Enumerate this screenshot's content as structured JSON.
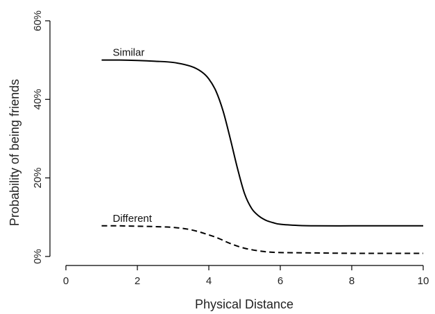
{
  "chart_data": {
    "type": "line",
    "title": "",
    "xlabel": "Physical Distance",
    "ylabel": "Probability of being friends",
    "xlim": [
      0,
      10
    ],
    "ylim": [
      0,
      0.6
    ],
    "xticks": [
      0,
      2,
      4,
      6,
      8,
      10
    ],
    "xtick_labels": [
      "0",
      "2",
      "4",
      "6",
      "8",
      "10"
    ],
    "yticks": [
      0,
      0.2,
      0.4,
      0.6
    ],
    "ytick_labels": [
      "0%",
      "20%",
      "40%",
      "60%"
    ],
    "grid": false,
    "legend": "none",
    "series": [
      {
        "name": "Similar",
        "style": "solid",
        "color": "#000000",
        "x": [
          1,
          1.5,
          2,
          2.5,
          3,
          3.5,
          3.8,
          4,
          4.2,
          4.4,
          4.6,
          4.8,
          5,
          5.2,
          5.4,
          5.6,
          5.8,
          6,
          6.5,
          7,
          8,
          9,
          10
        ],
        "y": [
          0.5,
          0.5,
          0.499,
          0.497,
          0.494,
          0.484,
          0.47,
          0.452,
          0.421,
          0.37,
          0.3,
          0.225,
          0.16,
          0.122,
          0.103,
          0.092,
          0.086,
          0.082,
          0.079,
          0.078,
          0.078,
          0.078,
          0.078
        ]
      },
      {
        "name": "Different",
        "style": "dashed",
        "color": "#000000",
        "x": [
          1,
          1.5,
          2,
          2.5,
          3,
          3.5,
          4,
          4.3,
          4.6,
          5,
          5.5,
          6,
          7,
          8,
          9,
          10
        ],
        "y": [
          0.078,
          0.078,
          0.077,
          0.076,
          0.074,
          0.068,
          0.055,
          0.045,
          0.033,
          0.021,
          0.013,
          0.01,
          0.009,
          0.008,
          0.008,
          0.008
        ]
      }
    ]
  }
}
